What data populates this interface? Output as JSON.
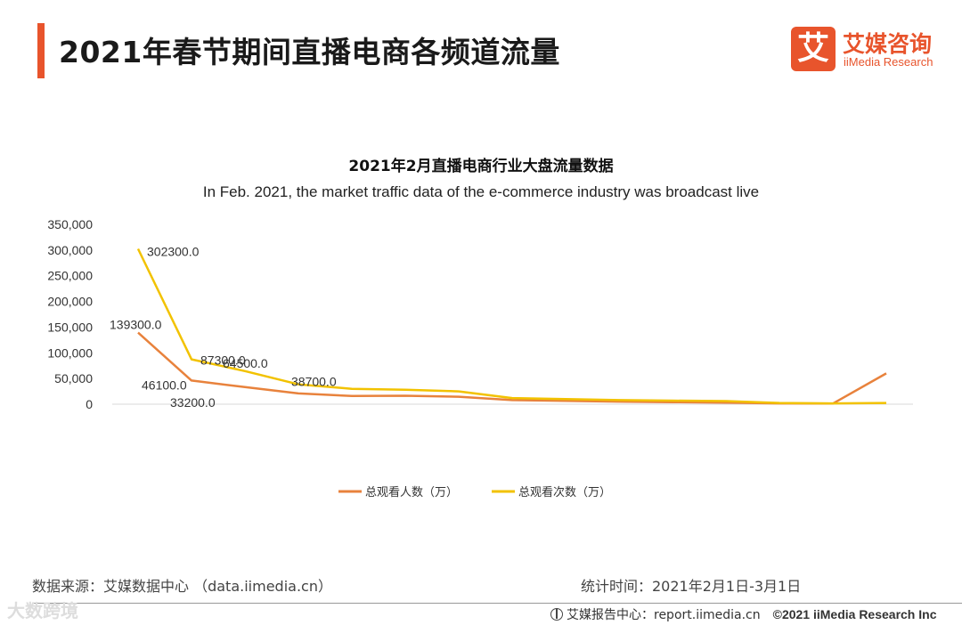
{
  "header": {
    "title": "2021年春节期间直播电商各频道流量",
    "logo_mark": "艾",
    "logo_cn": "艾媒咨询",
    "logo_en": "iiMedia Research",
    "accent_color": "#e8542c"
  },
  "chart_data": {
    "type": "line",
    "title": "2021年2月直播电商行业大盘流量数据",
    "subtitle": "In Feb. 2021, the market traffic data of the e-commerce industry was broadcast live",
    "xlabel": "",
    "ylabel": "",
    "ylim": [
      0,
      350000
    ],
    "yticks": [
      "350,000",
      "300,000",
      "250,000",
      "200,000",
      "150,000",
      "100,000",
      "50,000",
      "0"
    ],
    "ytick_values": [
      350000,
      300000,
      250000,
      200000,
      150000,
      100000,
      50000,
      0
    ],
    "grid": false,
    "legend_position": "bottom",
    "x": [
      1,
      2,
      3,
      4,
      5,
      6,
      7,
      8,
      9,
      10,
      11,
      12,
      13,
      14,
      15
    ],
    "series": [
      {
        "name": "总观看人数（万）",
        "color": "#e8823c",
        "values": [
          139300,
          46100,
          33200,
          21000,
          16000,
          16500,
          14500,
          8000,
          6500,
          5000,
          4000,
          3000,
          1500,
          1200,
          60000
        ],
        "labels": [
          "139300.0",
          "46100.0",
          "33200.0",
          null,
          null,
          null,
          null,
          null,
          null,
          null,
          null,
          null,
          null,
          null,
          null
        ]
      },
      {
        "name": "总观看次数（万）",
        "color": "#f2c200",
        "values": [
          302300,
          87300,
          64500,
          38700,
          30000,
          28000,
          25000,
          12000,
          10000,
          8000,
          7000,
          6000,
          2500,
          1500,
          2500
        ],
        "labels": [
          "302300.0",
          "87300.0",
          "64500.0",
          "38700.0",
          null,
          null,
          null,
          null,
          null,
          null,
          null,
          null,
          null,
          null,
          null
        ]
      }
    ]
  },
  "footer": {
    "source": "数据来源：艾媒数据中心 （data.iimedia.cn）",
    "stat_time": "统计时间：2021年2月1日-3月1日",
    "watermark": "大数跨境",
    "report_center": "艾媒报告中心：report.iimedia.cn",
    "copyright": "©2021  iiMedia Research  Inc"
  }
}
